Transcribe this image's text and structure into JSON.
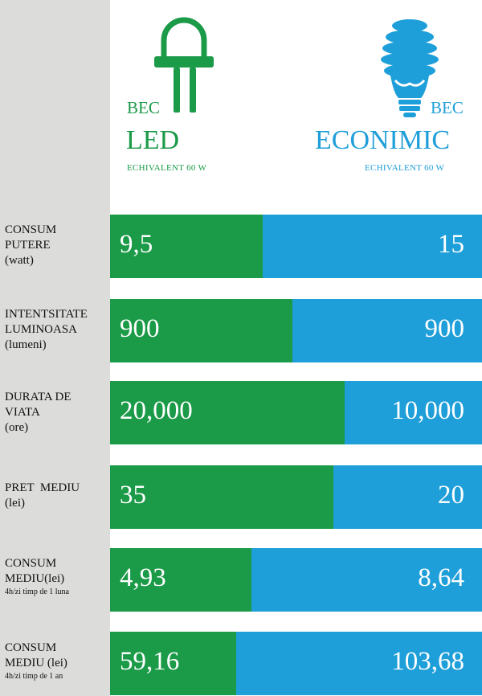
{
  "header": {
    "led": {
      "bec": "BEC",
      "type": "LED",
      "equiv": "ECHIVALENT 60 W",
      "icon": "led-bulb-icon",
      "color": "#1b9a48"
    },
    "eco": {
      "bec": "BEC",
      "type": "ECONIMIC",
      "equiv": "ECHIVALENT 60 W",
      "icon": "cfl-bulb-icon",
      "color": "#1f9fd9"
    }
  },
  "colors": {
    "sidebar": "#dcdcdb",
    "led": "#1b9a48",
    "eco": "#1f9fd9"
  },
  "rows": [
    {
      "l1": "CONSUM",
      "l2": "PUTERE",
      "l3": "(watt)",
      "note": "",
      "led": "9,5",
      "eco": "15"
    },
    {
      "l1": "INTENTSITATE",
      "l2": "LUMINOASA",
      "l3": "(lumeni)",
      "note": "",
      "led": "900",
      "eco": "900"
    },
    {
      "l1": "DURATA DE",
      "l2": "VIATA",
      "l3": "(ore)",
      "note": "",
      "led": "20,000",
      "eco": "10,000"
    },
    {
      "l1": "PRET  MEDIU",
      "l2": "(lei)",
      "l3": "",
      "note": "",
      "led": "35",
      "eco": "20"
    },
    {
      "l1": "CONSUM",
      "l2": "MEDIU(lei)",
      "l3": "",
      "note": "4h/zi timp de 1 luna",
      "led": "4,93",
      "eco": "8,64"
    },
    {
      "l1": "CONSUM",
      "l2": "MEDIU (lei)",
      "l3": "",
      "note": "4h/zi timp de 1 an",
      "led": "59,16",
      "eco": "103,68"
    }
  ],
  "chart_data": {
    "type": "bar",
    "categories": [
      "CONSUM PUTERE (watt)",
      "INTENTSITATE LUMINOASA (lumeni)",
      "DURATA DE VIATA (ore)",
      "PRET MEDIU (lei)",
      "CONSUM MEDIU(lei) 4h/zi timp de 1 luna",
      "CONSUM MEDIU (lei) 4h/zi timp de 1 an"
    ],
    "series": [
      {
        "name": "BEC LED",
        "values": [
          9.5,
          900,
          20000,
          35,
          4.93,
          59.16
        ]
      },
      {
        "name": "BEC ECONIMIC",
        "values": [
          15,
          900,
          10000,
          20,
          8.64,
          103.68
        ]
      }
    ],
    "bar_led_share": [
      0.41,
      0.49,
      0.63,
      0.6,
      0.38,
      0.34
    ]
  }
}
